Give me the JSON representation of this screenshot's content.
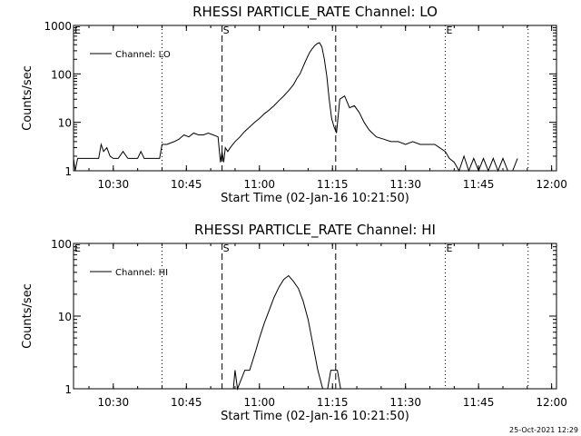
{
  "timestamp": "25-Oct-2021 12:29",
  "chart_data": [
    {
      "type": "line",
      "title": "RHESSI PARTICLE_RATE Channel: LO",
      "xlabel": "Start Time (02-Jan-16 10:21:50)",
      "ylabel": "Counts/sec",
      "y_scale": "log",
      "xlim": [
        "10:21:50",
        "12:01:00"
      ],
      "ylim": [
        1,
        1000
      ],
      "x_ticks": [
        "10:30",
        "10:45",
        "11:00",
        "11:15",
        "11:30",
        "11:45",
        "12:00"
      ],
      "y_ticks": [
        "1",
        "10",
        "100",
        "1000"
      ],
      "legend": {
        "position": "top-left",
        "entries": [
          "Channel: LO"
        ]
      },
      "markers": [
        {
          "time": "10:21:50",
          "label": "E",
          "style": "dotted"
        },
        {
          "time": "10:40:00",
          "label": "",
          "style": "dotted"
        },
        {
          "time": "10:52:20",
          "label": "S",
          "style": "dashed"
        },
        {
          "time": "11:15:40",
          "label": "",
          "style": "dashed"
        },
        {
          "time": "11:38:10",
          "label": "E",
          "style": "dotted"
        },
        {
          "time": "11:55:10",
          "label": "",
          "style": "dotted"
        }
      ],
      "series": [
        {
          "name": "Channel: LO",
          "x": [
            "10:21:50",
            "10:22:10",
            "10:22:40",
            "10:23:30",
            "10:25:00",
            "10:27:00",
            "10:27:30",
            "10:28:00",
            "10:28:40",
            "10:29:20",
            "10:30:00",
            "10:31:00",
            "10:32:00",
            "10:33:00",
            "10:34:00",
            "10:35:00",
            "10:35:40",
            "10:36:20",
            "10:37:00",
            "10:38:00",
            "10:39:30",
            "10:40:00",
            "10:41:00",
            "10:42:30",
            "10:43:30",
            "10:44:30",
            "10:45:30",
            "10:46:30",
            "10:47:30",
            "10:48:30",
            "10:49:30",
            "10:50:30",
            "10:51:30",
            "10:52:00",
            "10:52:20",
            "10:52:40",
            "10:53:00",
            "10:53:30",
            "10:54:00",
            "10:55:00",
            "10:56:00",
            "10:57:00",
            "10:58:00",
            "10:59:00",
            "11:00:00",
            "11:01:00",
            "11:02:00",
            "11:03:00",
            "11:04:00",
            "11:05:00",
            "11:06:00",
            "11:07:00",
            "11:07:40",
            "11:08:20",
            "11:08:50",
            "11:09:20",
            "11:09:50",
            "11:10:20",
            "11:10:50",
            "11:11:20",
            "11:11:50",
            "11:12:20",
            "11:12:50",
            "11:13:20",
            "11:13:50",
            "11:14:20",
            "11:14:50",
            "11:15:20",
            "11:15:50",
            "11:16:30",
            "11:17:30",
            "11:18:30",
            "11:19:30",
            "11:20:30",
            "11:21:30",
            "11:22:30",
            "11:24:00",
            "11:25:30",
            "11:27:00",
            "11:28:30",
            "11:30:00",
            "11:31:30",
            "11:33:00",
            "11:34:30",
            "11:36:00",
            "11:37:00",
            "11:38:10",
            "11:39:00",
            "11:40:00",
            "11:41:00",
            "11:42:00",
            "11:43:00",
            "11:44:00",
            "11:45:00",
            "11:46:00",
            "11:47:00",
            "11:48:00",
            "11:49:00",
            "11:50:00",
            "11:51:00",
            "11:52:00",
            "11:53:00"
          ],
          "y": [
            1.8,
            1.0,
            1.8,
            1.8,
            1.8,
            1.8,
            3.5,
            2.5,
            3.0,
            2.0,
            1.8,
            1.8,
            2.5,
            1.8,
            1.8,
            1.8,
            2.5,
            1.8,
            1.8,
            1.8,
            1.8,
            3.5,
            3.5,
            4.0,
            4.5,
            5.5,
            5.0,
            6.0,
            5.5,
            5.5,
            6.0,
            5.5,
            5.0,
            1.5,
            2.5,
            1.5,
            3.0,
            2.5,
            3.0,
            4.0,
            5.0,
            6.5,
            8.0,
            10,
            12,
            15,
            18,
            22,
            28,
            35,
            45,
            60,
            80,
            100,
            130,
            170,
            220,
            280,
            330,
            380,
            420,
            440,
            360,
            200,
            90,
            30,
            12,
            8,
            6,
            30,
            35,
            20,
            22,
            16,
            10,
            7,
            5,
            4.5,
            4.0,
            4.0,
            3.5,
            4.0,
            3.5,
            3.5,
            3.5,
            3.0,
            2.5,
            1.8,
            1.5,
            1.0,
            2.0,
            1.0,
            1.8,
            1.0,
            1.8,
            1.0,
            1.8,
            1.0,
            1.8,
            1.0,
            1.0,
            1.8
          ]
        }
      ]
    },
    {
      "type": "line",
      "title": "RHESSI PARTICLE_RATE Channel: HI",
      "xlabel": "Start Time (02-Jan-16 10:21:50)",
      "ylabel": "Counts/sec",
      "y_scale": "log",
      "xlim": [
        "10:21:50",
        "12:01:00"
      ],
      "ylim": [
        1,
        100
      ],
      "x_ticks": [
        "10:30",
        "10:45",
        "11:00",
        "11:15",
        "11:30",
        "11:45",
        "12:00"
      ],
      "y_ticks": [
        "1",
        "10",
        "100"
      ],
      "legend": {
        "position": "top-left",
        "entries": [
          "Channel: HI"
        ]
      },
      "markers": [
        {
          "time": "10:21:50",
          "label": "E",
          "style": "dotted"
        },
        {
          "time": "10:40:00",
          "label": "",
          "style": "dotted"
        },
        {
          "time": "10:52:20",
          "label": "S",
          "style": "dashed"
        },
        {
          "time": "11:15:40",
          "label": "",
          "style": "dashed"
        },
        {
          "time": "11:38:10",
          "label": "E",
          "style": "dotted"
        },
        {
          "time": "11:55:10",
          "label": "",
          "style": "dotted"
        }
      ],
      "series": [
        {
          "name": "Channel: HI",
          "x": [
            "10:54:40",
            "10:55:00",
            "10:55:30",
            "10:57:00",
            "10:58:00",
            "10:58:40",
            "10:59:20",
            "11:00:00",
            "11:01:00",
            "11:02:00",
            "11:03:00",
            "11:04:00",
            "11:05:00",
            "11:06:00",
            "11:07:00",
            "11:08:00",
            "11:09:00",
            "11:10:00",
            "11:11:00",
            "11:12:00",
            "11:13:00",
            "11:14:00",
            "11:14:40",
            "11:15:30",
            "11:16:00",
            "11:16:40"
          ],
          "y": [
            1.0,
            1.8,
            1.0,
            1.8,
            1.8,
            2.5,
            3.5,
            5,
            8,
            12,
            18,
            25,
            32,
            36,
            30,
            24,
            16,
            9,
            4,
            1.8,
            1.0,
            1.0,
            1.8,
            1.8,
            1.8,
            1.0
          ]
        }
      ]
    }
  ]
}
